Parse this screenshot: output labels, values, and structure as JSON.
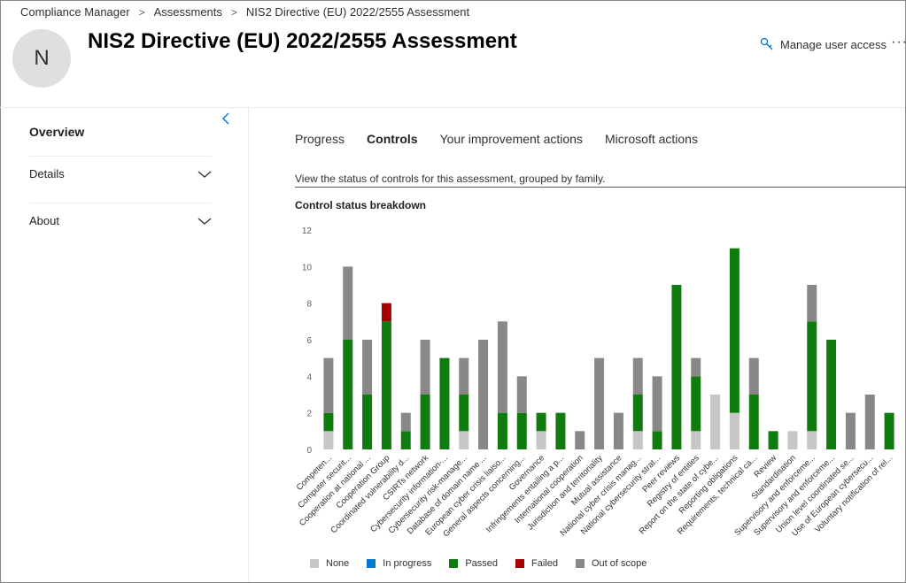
{
  "breadcrumb": [
    "Compliance Manager",
    "Assessments",
    "NIS2 Directive (EU) 2022/2555 Assessment"
  ],
  "avatar_letter": "N",
  "title": "NIS2 Directive (EU) 2022/2555 Assessment",
  "header": {
    "manage_label": "Manage user access",
    "more_label": "···"
  },
  "sidebar": {
    "overview": "Overview",
    "items": [
      {
        "label": "Details"
      },
      {
        "label": "About"
      }
    ]
  },
  "tabs": [
    {
      "label": "Progress",
      "active": false
    },
    {
      "label": "Controls",
      "active": true
    },
    {
      "label": "Your improvement actions",
      "active": false
    },
    {
      "label": "Microsoft actions",
      "active": false
    }
  ],
  "description": "View the status of controls for this assessment, grouped by family.",
  "chart_data": {
    "type": "bar",
    "stacked": true,
    "title": "Control status breakdown",
    "ylim": [
      0,
      12
    ],
    "yticks": [
      0,
      2,
      4,
      6,
      8,
      10,
      12
    ],
    "categories": [
      "Competen...",
      "Computer securit...",
      "Cooperation at national ...",
      "Cooperation Group",
      "Coordinated vulnerability d...",
      "CSIRTs network",
      "Cybersecurity information-...",
      "Cybersecurity risk-manage...",
      "Database of domain name ...",
      "European cyber crisis liaiso...",
      "General aspects concerning...",
      "Governance",
      "Infringements entailing a p...",
      "International cooperation",
      "Jurisdiction and territoriality",
      "Mutual assistance",
      "National cyber crisis manag...",
      "National cybersecurity strat...",
      "Peer reviews",
      "Registry of entities",
      "Report on the state of cybe...",
      "Reporting obligations",
      "Requirements, technical ca...",
      "Review",
      "Standardisation",
      "Supervisory and enforceme...",
      "Supervisory and enforceme...",
      "Union level coordinated se...",
      "Use of European cybersecu...",
      "Voluntary notification of rel..."
    ],
    "series": [
      {
        "name": "None",
        "color": "#c8c6c4",
        "values": [
          1,
          0,
          0,
          0,
          0,
          0,
          0,
          1,
          0,
          0,
          0,
          1,
          0,
          0,
          0,
          0,
          1,
          0,
          0,
          1,
          3,
          2,
          0,
          0,
          1,
          1,
          0,
          0,
          0,
          0
        ]
      },
      {
        "name": "In progress",
        "color": "#0078d4",
        "values": [
          0,
          0,
          0,
          0,
          0,
          0,
          0,
          0,
          0,
          0,
          0,
          0,
          0,
          0,
          0,
          0,
          0,
          0,
          0,
          0,
          0,
          0,
          0,
          0,
          0,
          0,
          0,
          0,
          0,
          0
        ]
      },
      {
        "name": "Passed",
        "color": "#107c10",
        "values": [
          1,
          6,
          3,
          7,
          1,
          3,
          5,
          2,
          0,
          2,
          2,
          1,
          2,
          0,
          0,
          0,
          2,
          1,
          9,
          3,
          0,
          9,
          3,
          1,
          0,
          6,
          6,
          0,
          0,
          2
        ]
      },
      {
        "name": "Failed",
        "color": "#a80000",
        "values": [
          0,
          0,
          0,
          1,
          0,
          0,
          0,
          0,
          0,
          0,
          0,
          0,
          0,
          0,
          0,
          0,
          0,
          0,
          0,
          0,
          0,
          0,
          0,
          0,
          0,
          0,
          0,
          0,
          0,
          0
        ]
      },
      {
        "name": "Out of scope",
        "color": "#8a8886",
        "values": [
          3,
          4,
          3,
          0,
          1,
          3,
          0,
          2,
          6,
          5,
          2,
          0,
          0,
          1,
          5,
          2,
          2,
          3,
          0,
          1,
          0,
          0,
          2,
          0,
          0,
          2,
          0,
          2,
          3,
          0
        ]
      }
    ],
    "legend_position": "bottom"
  }
}
